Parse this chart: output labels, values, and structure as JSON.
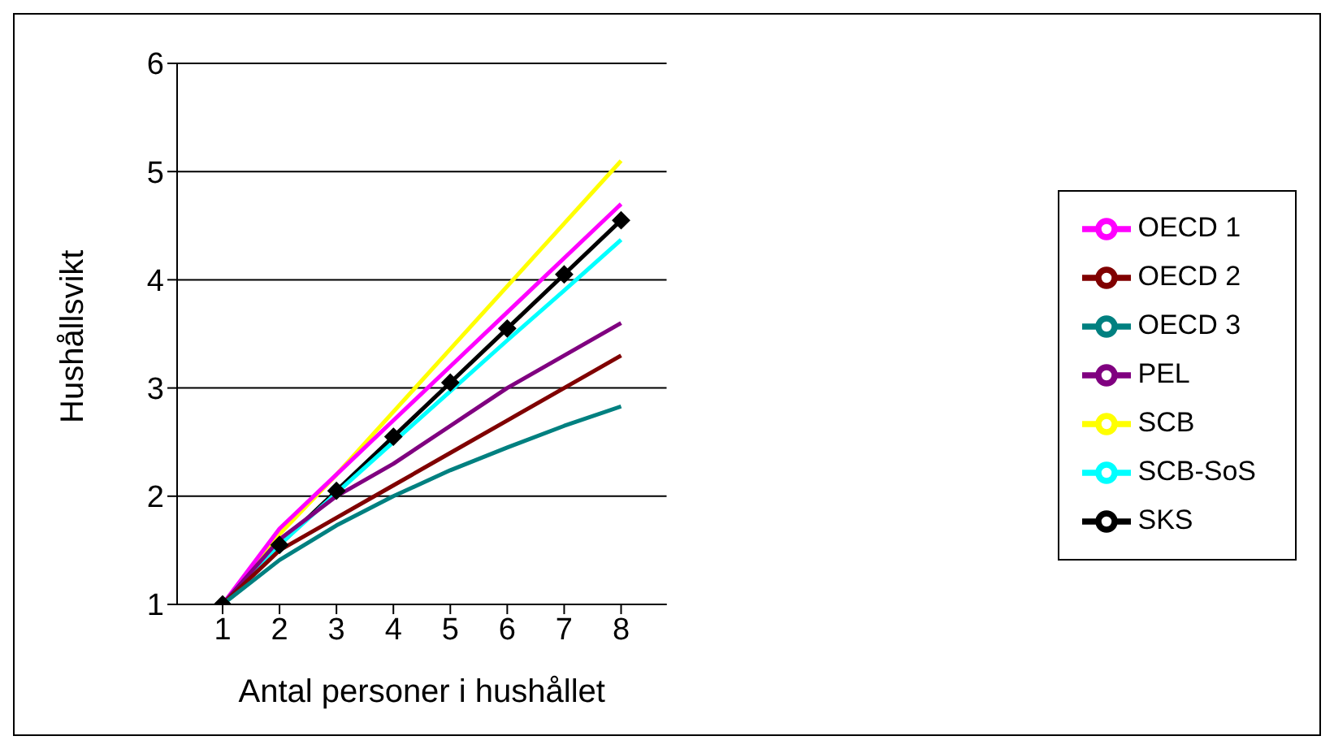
{
  "chart_data": {
    "type": "line",
    "xlabel": "Antal personer i hushållet",
    "ylabel": "Hushållsvikt",
    "categories": [
      "1",
      "2",
      "3",
      "4",
      "5",
      "6",
      "7",
      "8"
    ],
    "series": [
      {
        "name": "SCB",
        "color": "#ffff00",
        "values": [
          1,
          1.65,
          2.2,
          2.78,
          3.36,
          3.94,
          4.52,
          5.1
        ]
      },
      {
        "name": "OECD 1",
        "color": "#ff00ff",
        "values": [
          1,
          1.7,
          2.2,
          2.7,
          3.2,
          3.7,
          4.2,
          4.7
        ]
      },
      {
        "name": "SKS",
        "color": "#000000",
        "marker": "diamond",
        "values": [
          1,
          1.55,
          2.05,
          2.55,
          3.05,
          3.55,
          4.05,
          4.55
        ]
      },
      {
        "name": "SCB-SoS",
        "color": "#00ffff",
        "values": [
          1,
          1.55,
          2.03,
          2.5,
          2.97,
          3.44,
          3.9,
          4.37
        ]
      },
      {
        "name": "PEL",
        "color": "#800080",
        "values": [
          1,
          1.6,
          2.0,
          2.3,
          2.65,
          3.0,
          3.3,
          3.6
        ]
      },
      {
        "name": "OECD 2",
        "color": "#800000",
        "values": [
          1,
          1.5,
          1.8,
          2.1,
          2.4,
          2.7,
          3.0,
          3.3
        ]
      },
      {
        "name": "OECD 3",
        "color": "#008080",
        "values": [
          1,
          1.41,
          1.73,
          2,
          2.24,
          2.45,
          2.65,
          2.83
        ]
      }
    ],
    "ylim": [
      1,
      6
    ],
    "yticks": [
      1,
      2,
      3,
      4,
      5,
      6
    ],
    "grid": "y",
    "legend": "right",
    "marker": "none",
    "line_style": "solid"
  }
}
